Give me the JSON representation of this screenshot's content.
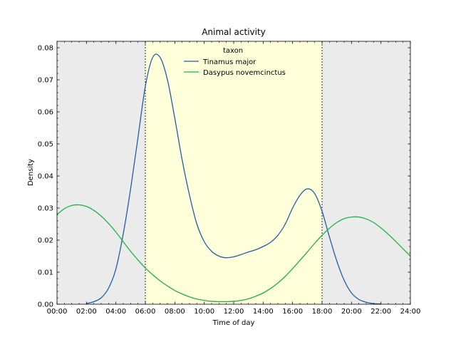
{
  "chart_data": {
    "type": "line",
    "title": "Animal activity",
    "xlabel": "Time of day",
    "ylabel": "Density",
    "xlim": [
      0,
      24
    ],
    "ylim": [
      0,
      0.082
    ],
    "x_ticks": [
      "00:00",
      "02:00",
      "04:00",
      "06:00",
      "08:00",
      "10:00",
      "12:00",
      "14:00",
      "16:00",
      "18:00",
      "20:00",
      "22:00",
      "24:00"
    ],
    "y_ticks": [
      "0.00",
      "0.01",
      "0.02",
      "0.03",
      "0.04",
      "0.05",
      "0.06",
      "0.07",
      "0.08"
    ],
    "y_tick_values": [
      0,
      0.01,
      0.02,
      0.03,
      0.04,
      0.05,
      0.06,
      0.07,
      0.08
    ],
    "background": {
      "night_color": "#ebebeb",
      "day_color": "#ffffd9",
      "day_start_hour": 6,
      "day_end_hour": 18
    },
    "legend": {
      "title": "taxon",
      "placement": "top-center"
    },
    "grid": false,
    "series": [
      {
        "name": "Tinamus major",
        "color": "#1f5fa8",
        "x": [
          2.0,
          2.5,
          3.0,
          3.5,
          4.0,
          4.5,
          5.0,
          5.5,
          6.0,
          6.5,
          7.0,
          7.5,
          8.0,
          8.5,
          9.0,
          9.5,
          10.0,
          10.5,
          11.0,
          11.5,
          12.0,
          12.5,
          13.0,
          13.5,
          14.0,
          14.5,
          15.0,
          15.5,
          16.0,
          16.5,
          17.0,
          17.5,
          18.0,
          18.5,
          19.0,
          19.5,
          20.0,
          20.5,
          21.0,
          21.5,
          22.0
        ],
        "y": [
          0.0002,
          0.0008,
          0.002,
          0.005,
          0.011,
          0.022,
          0.036,
          0.052,
          0.068,
          0.077,
          0.077,
          0.07,
          0.058,
          0.045,
          0.034,
          0.025,
          0.0195,
          0.0165,
          0.015,
          0.0145,
          0.0148,
          0.0155,
          0.0163,
          0.017,
          0.018,
          0.0193,
          0.0215,
          0.025,
          0.03,
          0.034,
          0.036,
          0.0345,
          0.029,
          0.021,
          0.0135,
          0.0075,
          0.0035,
          0.0015,
          0.0006,
          0.0002,
          0.0001
        ]
      },
      {
        "name": "Dasypus novemcinctus",
        "color": "#1ab34a",
        "x": [
          0,
          0.5,
          1.0,
          1.5,
          2.0,
          2.5,
          3.0,
          3.5,
          4.0,
          4.5,
          5.0,
          5.5,
          6.0,
          6.5,
          7.0,
          7.5,
          8.0,
          8.5,
          9.0,
          9.5,
          10.0,
          10.5,
          11.0,
          11.5,
          12.0,
          12.5,
          13.0,
          13.5,
          14.0,
          14.5,
          15.0,
          15.5,
          16.0,
          16.5,
          17.0,
          17.5,
          18.0,
          18.5,
          19.0,
          19.5,
          20.0,
          20.5,
          21.0,
          21.5,
          22.0,
          22.5,
          23.0,
          23.5,
          24.0
        ],
        "y": [
          0.028,
          0.0298,
          0.0308,
          0.031,
          0.0305,
          0.0293,
          0.0275,
          0.0252,
          0.0225,
          0.0195,
          0.0165,
          0.0138,
          0.0113,
          0.0092,
          0.0073,
          0.0057,
          0.0043,
          0.0032,
          0.0023,
          0.0016,
          0.0012,
          0.0009,
          0.0008,
          0.0008,
          0.0009,
          0.0012,
          0.0017,
          0.0025,
          0.0035,
          0.0049,
          0.0066,
          0.0087,
          0.0111,
          0.0137,
          0.0163,
          0.019,
          0.0215,
          0.0237,
          0.0255,
          0.0267,
          0.0272,
          0.0272,
          0.0266,
          0.0255,
          0.0238,
          0.0218,
          0.0196,
          0.0173,
          0.015
        ]
      }
    ]
  }
}
